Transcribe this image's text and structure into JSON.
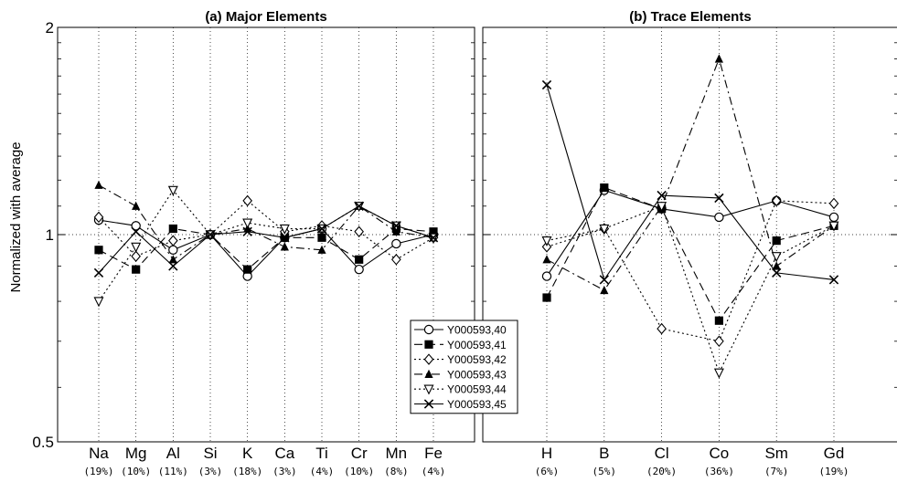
{
  "ylabel": "Normalized with average",
  "y_ticks": [
    {
      "value": 2,
      "label": "2"
    },
    {
      "value": 1,
      "label": "1"
    },
    {
      "value": 0.5,
      "label": "0.5"
    }
  ],
  "legend": {
    "entries": [
      "Y000593,40",
      "Y000593,41",
      "Y000593,42",
      "Y000593,43",
      "Y000593,44",
      "Y000593,45"
    ]
  },
  "chart_data": [
    {
      "type": "line",
      "title": "(a) Major Elements",
      "yscale": "log",
      "ylim": [
        0.5,
        2
      ],
      "grid": true,
      "reference_line": 1,
      "legend_position": "lower-right",
      "categories": [
        "Na",
        "Mg",
        "Al",
        "Si",
        "K",
        "Ca",
        "Ti",
        "Cr",
        "Mn",
        "Fe"
      ],
      "sublabels": [
        "(19%)",
        "(10%)",
        "(11%)",
        "(3%)",
        "(18%)",
        "(3%)",
        "(4%)",
        "(10%)",
        "(8%)",
        "(4%)"
      ],
      "series": [
        {
          "name": "Y000593,40",
          "marker": "circle-open",
          "dash": "solid",
          "values": [
            1.05,
            1.03,
            0.95,
            1.0,
            0.87,
            0.99,
            1.02,
            0.89,
            0.97,
            1.0
          ]
        },
        {
          "name": "Y000593,41",
          "marker": "square-filled",
          "dash": "dashed",
          "values": [
            0.95,
            0.89,
            1.02,
            1.0,
            0.89,
            0.99,
            0.99,
            0.92,
            1.02,
            1.01
          ]
        },
        {
          "name": "Y000593,42",
          "marker": "diamond-open",
          "dash": "dotted",
          "values": [
            1.06,
            0.93,
            0.98,
            1.0,
            1.12,
            1.01,
            1.03,
            1.01,
            0.92,
            0.99
          ]
        },
        {
          "name": "Y000593,43",
          "marker": "triangle-up-filled",
          "dash": "dashdot",
          "values": [
            1.18,
            1.1,
            0.92,
            1.0,
            1.02,
            0.96,
            0.95,
            1.1,
            1.01,
            0.99
          ]
        },
        {
          "name": "Y000593,44",
          "marker": "triangle-down-open",
          "dash": "dotted",
          "values": [
            0.8,
            0.96,
            1.16,
            1.0,
            1.04,
            1.02,
            1.02,
            1.1,
            1.03,
            0.99
          ]
        },
        {
          "name": "Y000593,45",
          "marker": "x",
          "dash": "solid",
          "values": [
            0.88,
            1.01,
            0.9,
            1.0,
            1.01,
            0.99,
            1.02,
            1.1,
            1.03,
            0.99
          ]
        }
      ]
    },
    {
      "type": "line",
      "title": "(b) Trace Elements",
      "yscale": "log",
      "ylim": [
        0.5,
        2
      ],
      "grid": true,
      "reference_line": 1,
      "categories": [
        "H",
        "B",
        "Cl",
        "Co",
        "Sm",
        "Gd"
      ],
      "sublabels": [
        "(6%)",
        "(5%)",
        "(20%)",
        "(36%)",
        "(7%)",
        "(19%)"
      ],
      "series": [
        {
          "name": "Y000593,40",
          "marker": "circle-open",
          "dash": "solid",
          "values": [
            0.87,
            1.16,
            1.09,
            1.06,
            1.12,
            1.06
          ]
        },
        {
          "name": "Y000593,41",
          "marker": "square-filled",
          "dash": "dashed",
          "values": [
            0.81,
            1.17,
            1.09,
            0.75,
            0.98,
            1.03
          ]
        },
        {
          "name": "Y000593,42",
          "marker": "diamond-open",
          "dash": "dotted",
          "values": [
            0.96,
            1.02,
            0.73,
            0.7,
            1.12,
            1.11
          ]
        },
        {
          "name": "Y000593,43",
          "marker": "triangle-up-filled",
          "dash": "dashdot",
          "values": [
            0.92,
            0.83,
            1.1,
            1.8,
            0.9,
            1.03
          ]
        },
        {
          "name": "Y000593,44",
          "marker": "triangle-down-open",
          "dash": "dotted",
          "values": [
            0.98,
            1.02,
            1.1,
            0.63,
            0.93,
            1.03
          ]
        },
        {
          "name": "Y000593,45",
          "marker": "x",
          "dash": "solid",
          "values": [
            1.65,
            0.86,
            1.14,
            1.13,
            0.88,
            0.86
          ]
        }
      ]
    }
  ]
}
